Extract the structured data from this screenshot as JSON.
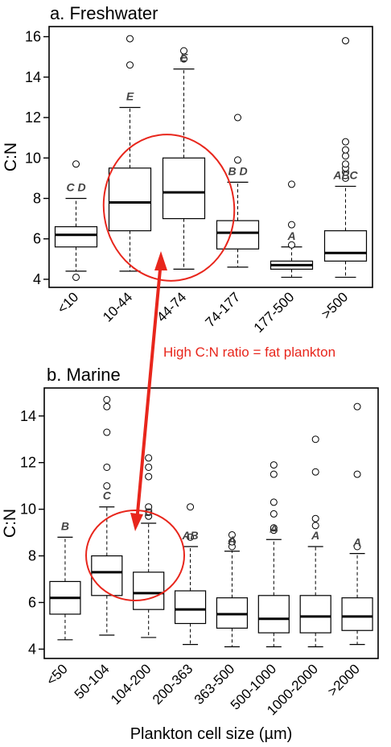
{
  "chart_data": [
    {
      "type": "box",
      "title": "a. Freshwater",
      "ylabel": "C:N",
      "xlabel": "",
      "ylim": [
        3.6,
        16.5
      ],
      "yticks": [
        4,
        6,
        8,
        10,
        12,
        14,
        16
      ],
      "grid": false,
      "categories": [
        "<10",
        "10-44",
        "44-74",
        "74-177",
        "177-500",
        ">500"
      ],
      "boxes": [
        {
          "category": "<10",
          "whisker_low": 4.4,
          "q1": 5.6,
          "median": 6.2,
          "q3": 6.6,
          "whisker_high": 8.0,
          "outliers": [
            4.1,
            9.7
          ],
          "group_label": "C D"
        },
        {
          "category": "10-44",
          "whisker_low": 4.4,
          "q1": 6.4,
          "median": 7.8,
          "q3": 9.5,
          "whisker_high": 12.5,
          "outliers": [
            14.6,
            15.9
          ],
          "group_label": "E"
        },
        {
          "category": "44-74",
          "whisker_low": 4.5,
          "q1": 7.0,
          "median": 8.3,
          "q3": 10.0,
          "whisker_high": 14.4,
          "outliers": [
            14.9,
            15.3
          ],
          "group_label": "E"
        },
        {
          "category": "74-177",
          "whisker_low": 4.6,
          "q1": 5.5,
          "median": 6.3,
          "q3": 6.9,
          "whisker_high": 8.8,
          "outliers": [
            9.9,
            12.0
          ],
          "group_label": "B D"
        },
        {
          "category": "177-500",
          "whisker_low": 4.1,
          "q1": 4.5,
          "median": 4.7,
          "q3": 4.9,
          "whisker_high": 5.6,
          "outliers": [
            5.7,
            6.7,
            8.7
          ],
          "group_label": "A"
        },
        {
          "category": ">500",
          "whisker_low": 4.1,
          "q1": 4.9,
          "median": 5.3,
          "q3": 6.4,
          "whisker_high": 8.6,
          "outliers": [
            9.0,
            9.3,
            9.5,
            9.7,
            10.1,
            10.4,
            10.8,
            15.8
          ],
          "group_label": "ABC"
        }
      ]
    },
    {
      "type": "box",
      "title": "b. Marine",
      "ylabel": "C:N",
      "xlabel": "Plankton cell size (µm)",
      "ylim": [
        3.6,
        15.2
      ],
      "yticks": [
        4,
        6,
        8,
        10,
        12,
        14
      ],
      "grid": false,
      "categories": [
        "<50",
        "50-104",
        "104-200",
        "200-363",
        "363-500",
        "500-1000",
        "1000-2000",
        ">2000"
      ],
      "boxes": [
        {
          "category": "<50",
          "whisker_low": 4.4,
          "q1": 5.5,
          "median": 6.2,
          "q3": 6.9,
          "whisker_high": 8.8,
          "outliers": [],
          "group_label": "B"
        },
        {
          "category": "50-104",
          "whisker_low": 4.6,
          "q1": 6.3,
          "median": 7.3,
          "q3": 8.0,
          "whisker_high": 10.1,
          "outliers": [
            11.0,
            11.8,
            13.3,
            14.4,
            14.7
          ],
          "group_label": "C"
        },
        {
          "category": "104-200",
          "whisker_low": 4.5,
          "q1": 5.7,
          "median": 6.4,
          "q3": 7.3,
          "whisker_high": 9.4,
          "outliers": [
            9.7,
            9.9,
            10.1,
            11.4,
            11.8,
            12.2
          ],
          "group_label": "B"
        },
        {
          "category": "200-363",
          "whisker_low": 4.2,
          "q1": 5.1,
          "median": 5.7,
          "q3": 6.5,
          "whisker_high": 8.4,
          "outliers": [
            8.8,
            10.1
          ],
          "group_label": "AB"
        },
        {
          "category": "363-500",
          "whisker_low": 4.1,
          "q1": 4.9,
          "median": 5.5,
          "q3": 6.2,
          "whisker_high": 8.2,
          "outliers": [
            8.4,
            8.6,
            8.9
          ],
          "group_label": "A"
        },
        {
          "category": "500-1000",
          "whisker_low": 4.1,
          "q1": 4.7,
          "median": 5.3,
          "q3": 6.3,
          "whisker_high": 8.7,
          "outliers": [
            9.1,
            9.2,
            9.8,
            10.3,
            11.5,
            11.9
          ],
          "group_label": "A"
        },
        {
          "category": "1000-2000",
          "whisker_low": 4.1,
          "q1": 4.7,
          "median": 5.4,
          "q3": 6.3,
          "whisker_high": 8.4,
          "outliers": [
            9.3,
            9.6,
            11.6,
            13.0
          ],
          "group_label": "A"
        },
        {
          "category": ">2000",
          "whisker_low": 4.2,
          "q1": 4.8,
          "median": 5.4,
          "q3": 6.2,
          "whisker_high": 8.1,
          "outliers": [
            8.4,
            11.5,
            14.4
          ],
          "group_label": "A"
        }
      ]
    }
  ],
  "annotation": {
    "text": "High C:N ratio = fat plankton",
    "color": "#e8261c"
  }
}
